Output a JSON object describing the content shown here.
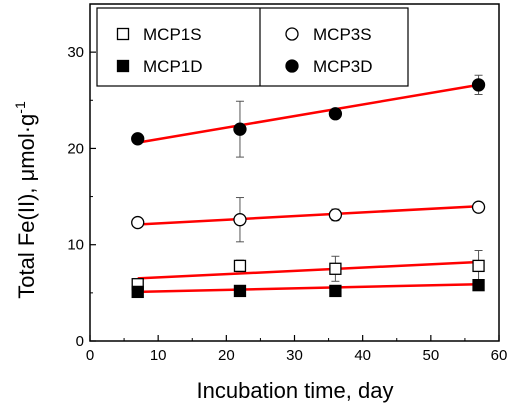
{
  "chart_data": {
    "type": "scatter",
    "title": "",
    "xlabel": "Incubation time, day",
    "ylabel": "Total Fe(II), μmol·g",
    "ylabel_sup": "-1",
    "xlim": [
      0,
      60
    ],
    "ylim": [
      0,
      35
    ],
    "xticks": [
      0,
      10,
      20,
      30,
      40,
      50,
      60
    ],
    "yticks": [
      0,
      10,
      20,
      30
    ],
    "grid": false,
    "legend_position": "top-left",
    "x": [
      7,
      22,
      36,
      57
    ],
    "series": [
      {
        "name": "MCP1S",
        "marker": "open-square",
        "values": [
          5.9,
          7.8,
          7.5,
          7.8
        ],
        "errors": [
          0.4,
          0.6,
          1.3,
          1.6
        ],
        "fit": [
          6.5,
          8.2
        ]
      },
      {
        "name": "MCP1D",
        "marker": "filled-square",
        "values": [
          5.1,
          5.2,
          5.2,
          5.8
        ],
        "errors": [
          0.3,
          0.3,
          0.3,
          0.4
        ],
        "fit": [
          5.1,
          5.9
        ]
      },
      {
        "name": "MCP3S",
        "marker": "open-circle",
        "values": [
          12.3,
          12.6,
          13.1,
          13.9
        ],
        "errors": [
          0.3,
          2.3,
          0.6,
          0.3
        ],
        "fit": [
          12.1,
          14.0
        ]
      },
      {
        "name": "MCP3D",
        "marker": "filled-circle",
        "values": [
          21.0,
          22.0,
          23.6,
          26.6
        ],
        "errors": [
          0.3,
          2.9,
          0.3,
          1.0
        ],
        "fit": [
          20.6,
          26.6
        ]
      }
    ],
    "fit_color": "#ff0000",
    "marker_color": "#000000"
  }
}
